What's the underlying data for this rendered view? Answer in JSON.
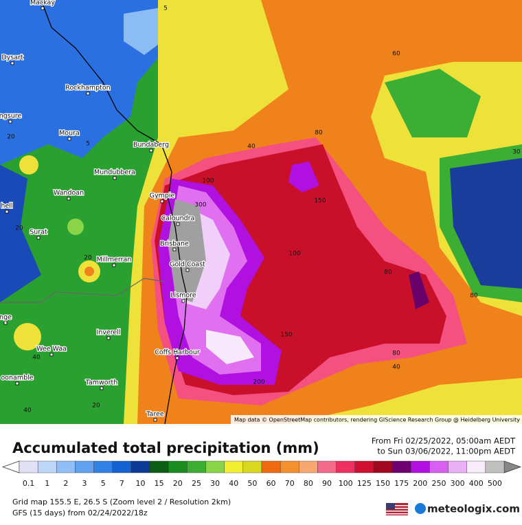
{
  "map": {
    "cities": [
      "Mackay",
      "Dysart",
      "Rockhampton",
      "ngsure",
      "Moura",
      "Bundaberg",
      "Mundubbera",
      "Wandoan",
      "Gympie",
      "Caloundra",
      "hell",
      "Surat",
      "Brisbane",
      "Millmerran",
      "Gold Coast",
      "Lismore",
      "nge",
      "Inverell",
      "Wee Waa",
      "Coffs Harbour",
      "oonamble",
      "Tamworth",
      "Taree"
    ],
    "contour_labels": [
      5,
      60,
      5,
      20,
      40,
      80,
      100,
      300,
      150,
      20,
      20,
      100,
      80,
      80,
      150,
      80,
      40,
      200,
      40,
      40,
      20,
      30
    ],
    "attribution": "Map data © OpenStreetMap contributors, rendering GIScience Research Group @ Heidelberg University"
  },
  "header": {
    "title": "Accumulated total precipitation (mm)",
    "from": "From Fri 02/25/2022, 05:00am AEDT",
    "to": "to Sun 03/06/2022, 11:00pm AEDT"
  },
  "legend": {
    "items": [
      {
        "value": 0.1,
        "color": "#e2e0f4"
      },
      {
        "value": 1,
        "color": "#bcd6f8"
      },
      {
        "value": 2,
        "color": "#90bef6"
      },
      {
        "value": 3,
        "color": "#62a0f0"
      },
      {
        "value": 5,
        "color": "#3282e6"
      },
      {
        "value": 7,
        "color": "#1462d2"
      },
      {
        "value": 10,
        "color": "#0c3a94"
      },
      {
        "value": 15,
        "color": "#0c5e14"
      },
      {
        "value": 20,
        "color": "#1a8c20"
      },
      {
        "value": 25,
        "color": "#3cae34"
      },
      {
        "value": 30,
        "color": "#8ad44a"
      },
      {
        "value": 40,
        "color": "#f2ee30"
      },
      {
        "value": 50,
        "color": "#d8d820"
      },
      {
        "value": 60,
        "color": "#f06a10"
      },
      {
        "value": 70,
        "color": "#f49030"
      },
      {
        "value": 80,
        "color": "#f6a870"
      },
      {
        "value": 90,
        "color": "#f46a8a"
      },
      {
        "value": 100,
        "color": "#ee3060"
      },
      {
        "value": 125,
        "color": "#d01030"
      },
      {
        "value": 150,
        "color": "#a00820"
      },
      {
        "value": 175,
        "color": "#6e0070"
      },
      {
        "value": 200,
        "color": "#b010e0"
      },
      {
        "value": 250,
        "color": "#d860f0"
      },
      {
        "value": 300,
        "color": "#eab0f6"
      },
      {
        "value": 400,
        "color": "#f8ecfa"
      },
      {
        "value": 500,
        "color": "#c0c0c0"
      }
    ]
  },
  "footer": {
    "grid": "Grid map 155.5 E, 26.5 S (Zoom level 2 / Resolution 2km)",
    "model": "GFS (15 days) from  02/24/2022/18z",
    "logo": "meteologix.com"
  }
}
